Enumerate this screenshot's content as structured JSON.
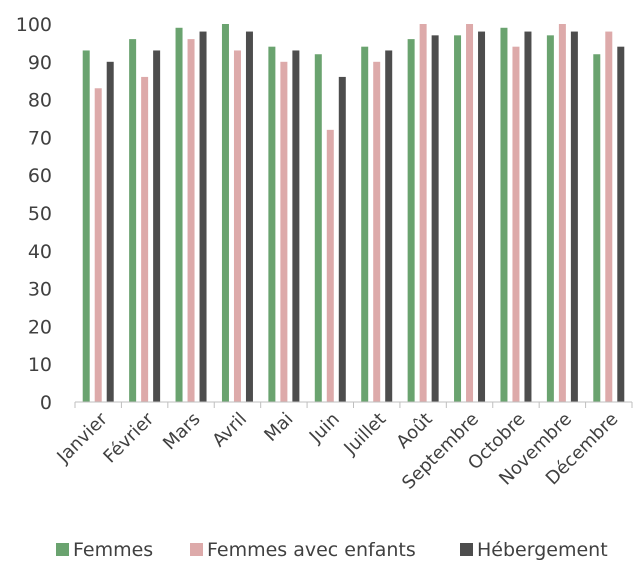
{
  "chart_data": {
    "type": "bar",
    "title": "",
    "xlabel": "",
    "ylabel": "",
    "ylim": [
      0,
      100
    ],
    "yticks": [
      0,
      10,
      20,
      30,
      40,
      50,
      60,
      70,
      80,
      90,
      100
    ],
    "grid": false,
    "legend_position": "bottom",
    "categories": [
      "Janvier",
      "Février",
      "Mars",
      "Avril",
      "Mai",
      "Juin",
      "Juillet",
      "Août",
      "Septembre",
      "Octobre",
      "Novembre",
      "Décembre"
    ],
    "series": [
      {
        "name": "Femmes",
        "color": "#6aa36f",
        "values": [
          93,
          96,
          99,
          100,
          94,
          92,
          94,
          96,
          97,
          99,
          97,
          92
        ]
      },
      {
        "name": "Femmes avec enfants",
        "color": "#ddaaaa",
        "values": [
          83,
          86,
          96,
          93,
          90,
          72,
          90,
          100,
          100,
          94,
          100,
          98
        ]
      },
      {
        "name": "Hébergement",
        "color": "#4d4d4d",
        "values": [
          90,
          93,
          98,
          98,
          93,
          86,
          93,
          97,
          98,
          98,
          98,
          94
        ]
      }
    ]
  }
}
